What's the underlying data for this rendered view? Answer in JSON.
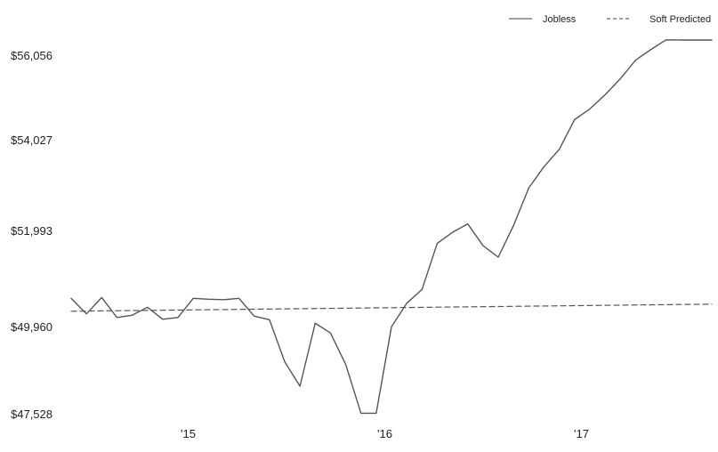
{
  "chart_data": {
    "type": "line",
    "title": "",
    "xlabel": "",
    "ylabel": "",
    "grid": false,
    "legend_position": "top-right",
    "x_tick_labels": [
      "'15",
      "'16",
      "'17"
    ],
    "x_tick_positions": [
      12,
      24,
      36
    ],
    "y_tick_labels": [
      "$47,528",
      "$49,960",
      "$51,993",
      "$54,027",
      "$56,056"
    ],
    "y_tick_values": [
      47528,
      49960,
      51993,
      54027,
      56056
    ],
    "ylim": [
      47528,
      56056
    ],
    "xlim": [
      7,
      49
    ],
    "series": [
      {
        "name": "Jobless",
        "style": "solid",
        "color": "#555555",
        "x": [
          7,
          8,
          9,
          10,
          11,
          12,
          13,
          14,
          15,
          16,
          17,
          18,
          19,
          20,
          21,
          22,
          23,
          24,
          25,
          26,
          27,
          28,
          29,
          30,
          31,
          32,
          33,
          34,
          35,
          36,
          37,
          38,
          39,
          40,
          41,
          42,
          43,
          44,
          45,
          46,
          47,
          48,
          49
        ],
        "values": [
          50230,
          49880,
          50250,
          49800,
          49850,
          50030,
          49760,
          49800,
          50230,
          50210,
          50200,
          50230,
          49830,
          49750,
          48800,
          48250,
          49670,
          49450,
          48740,
          47640,
          47640,
          49590,
          50120,
          50430,
          51470,
          51720,
          51910,
          51420,
          51160,
          51870,
          52720,
          53200,
          53590,
          54260,
          54500,
          54820,
          55180,
          55600,
          55840,
          56060,
          56056,
          56056,
          56056
        ]
      },
      {
        "name": "Soft Predicted",
        "style": "dashed",
        "color": "#555555",
        "x": [
          7,
          49
        ],
        "values": [
          49940,
          50100
        ]
      }
    ]
  }
}
